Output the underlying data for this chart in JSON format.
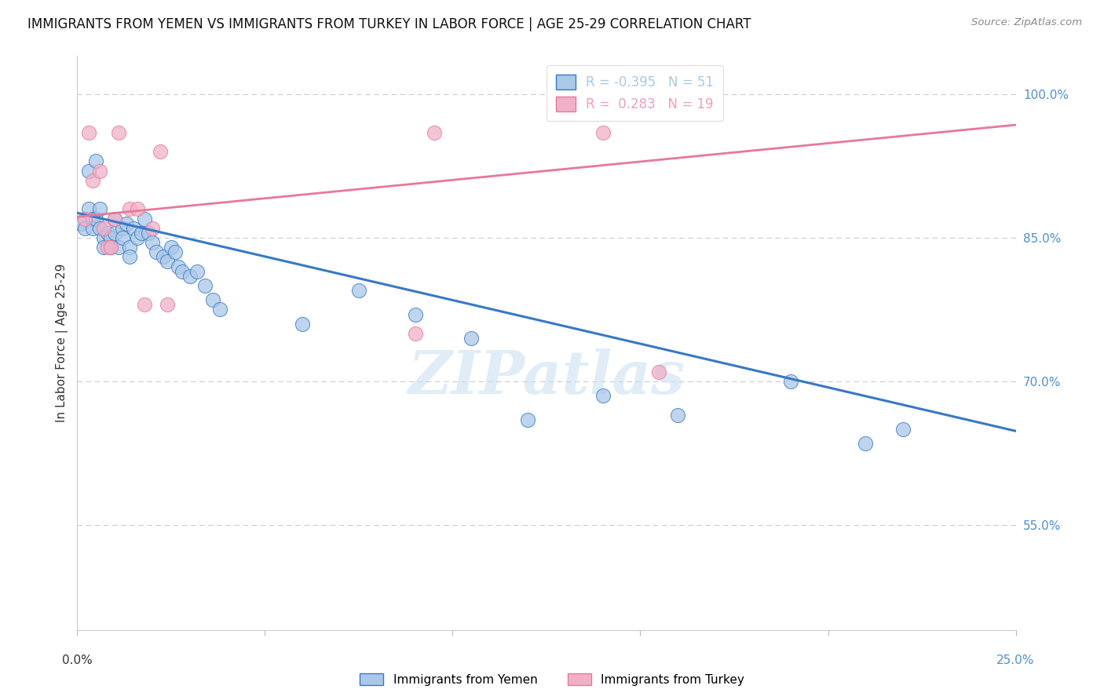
{
  "title": "IMMIGRANTS FROM YEMEN VS IMMIGRANTS FROM TURKEY IN LABOR FORCE | AGE 25-29 CORRELATION CHART",
  "source": "Source: ZipAtlas.com",
  "ylabel": "In Labor Force | Age 25-29",
  "ylabel_right_ticks": [
    "100.0%",
    "85.0%",
    "70.0%",
    "55.0%"
  ],
  "ylabel_right_values": [
    1.0,
    0.85,
    0.7,
    0.55
  ],
  "xlim": [
    0.0,
    0.25
  ],
  "ylim": [
    0.44,
    1.04
  ],
  "watermark": "ZIPatlas",
  "legend": [
    {
      "label": "R = -0.395   N = 51",
      "color": "#aac8e8"
    },
    {
      "label": "R =  0.283   N = 19",
      "color": "#f0a0b8"
    }
  ],
  "yemen_x": [
    0.001,
    0.002,
    0.003,
    0.003,
    0.004,
    0.004,
    0.005,
    0.005,
    0.006,
    0.006,
    0.007,
    0.007,
    0.008,
    0.009,
    0.009,
    0.01,
    0.01,
    0.011,
    0.012,
    0.012,
    0.013,
    0.014,
    0.014,
    0.015,
    0.016,
    0.017,
    0.018,
    0.019,
    0.02,
    0.021,
    0.023,
    0.024,
    0.025,
    0.026,
    0.027,
    0.028,
    0.03,
    0.032,
    0.034,
    0.036,
    0.038,
    0.06,
    0.075,
    0.09,
    0.105,
    0.12,
    0.14,
    0.16,
    0.19,
    0.21,
    0.22
  ],
  "yemen_y": [
    0.865,
    0.86,
    0.92,
    0.88,
    0.87,
    0.86,
    0.93,
    0.87,
    0.88,
    0.86,
    0.85,
    0.84,
    0.855,
    0.85,
    0.84,
    0.87,
    0.855,
    0.84,
    0.86,
    0.85,
    0.865,
    0.84,
    0.83,
    0.86,
    0.85,
    0.855,
    0.87,
    0.855,
    0.845,
    0.835,
    0.83,
    0.825,
    0.84,
    0.835,
    0.82,
    0.815,
    0.81,
    0.815,
    0.8,
    0.785,
    0.775,
    0.76,
    0.795,
    0.77,
    0.745,
    0.66,
    0.685,
    0.665,
    0.7,
    0.635,
    0.65
  ],
  "turkey_x": [
    0.002,
    0.003,
    0.004,
    0.006,
    0.007,
    0.008,
    0.009,
    0.01,
    0.011,
    0.014,
    0.016,
    0.018,
    0.02,
    0.022,
    0.024,
    0.09,
    0.095,
    0.14,
    0.155
  ],
  "turkey_y": [
    0.87,
    0.96,
    0.91,
    0.92,
    0.86,
    0.84,
    0.84,
    0.87,
    0.96,
    0.88,
    0.88,
    0.78,
    0.86,
    0.94,
    0.78,
    0.75,
    0.96,
    0.96,
    0.71
  ],
  "blue_line_x": [
    0.0,
    0.25
  ],
  "blue_line_y": [
    0.876,
    0.648
  ],
  "pink_line_x": [
    0.0,
    0.25
  ],
  "pink_line_y": [
    0.872,
    0.968
  ],
  "blue_color": "#3878c8",
  "pink_color": "#e87898",
  "blue_scatter_color": "#aac8e8",
  "pink_scatter_color": "#f0b0c8",
  "grid_color": "#cccccc",
  "right_axis_color": "#5090d0",
  "watermark_color": "#c8dff0",
  "bottom_legend": [
    {
      "label": "Immigrants from Yemen",
      "color": "#aac8e8",
      "edge": "#3878c8"
    },
    {
      "label": "Immigrants from Turkey",
      "color": "#f0b0c8",
      "edge": "#e87898"
    }
  ]
}
